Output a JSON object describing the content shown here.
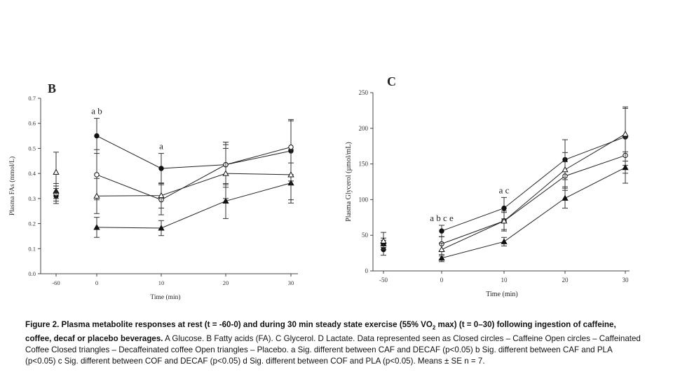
{
  "chart_data": [
    {
      "type": "line",
      "panel_label": "B",
      "title": "",
      "xlabel": "Time (min)",
      "ylabel": "Plasma FAs (mmol/L)",
      "x_ticks": [
        "-60",
        "0",
        "10",
        "20",
        "30"
      ],
      "y_ticks": [
        "0.0",
        "0.1",
        "0.2",
        "0.3",
        "0.4",
        "0.5",
        "0.6",
        "0.7"
      ],
      "ylim": [
        0,
        0.7
      ],
      "annotations": [
        {
          "x": "0",
          "text": "a b"
        },
        {
          "x": "10",
          "text": "a"
        }
      ],
      "series": [
        {
          "name": "Caffeine",
          "marker": "closed-circle",
          "values": [
            0.31,
            0.55,
            0.42,
            0.435,
            0.49
          ],
          "errors": [
            0.03,
            0.07,
            0.06,
            0.09,
            0.12
          ]
        },
        {
          "name": "Caffeinated Coffee",
          "marker": "open-circle",
          "values": [
            0.32,
            0.395,
            0.295,
            0.435,
            0.505
          ],
          "errors": [
            0.03,
            0.1,
            0.06,
            0.08,
            0.11
          ]
        },
        {
          "name": "Decaffeinated coffee",
          "marker": "closed-triangle",
          "values": [
            0.33,
            0.185,
            0.182,
            0.29,
            0.362
          ],
          "errors": [
            0.03,
            0.04,
            0.03,
            0.07,
            0.08
          ]
        },
        {
          "name": "Placebo",
          "marker": "open-triangle",
          "values": [
            0.405,
            0.31,
            0.312,
            0.4,
            0.395
          ],
          "errors": [
            0.08,
            0.07,
            0.05,
            0.1,
            0.1
          ]
        }
      ]
    },
    {
      "type": "line",
      "panel_label": "C",
      "title": "",
      "xlabel": "Time (min)",
      "ylabel": "Plasma Glycerol (µmol/mL)",
      "x_ticks": [
        "-50",
        "0",
        "10",
        "20",
        "30"
      ],
      "y_ticks": [
        "0",
        "50",
        "100",
        "150",
        "200",
        "250"
      ],
      "ylim": [
        0,
        250
      ],
      "annotations": [
        {
          "x": "0",
          "text": "a b c e"
        },
        {
          "x": "10",
          "text": "a c"
        }
      ],
      "series": [
        {
          "name": "Caffeine",
          "marker": "closed-circle",
          "values": [
            30,
            56,
            88,
            156,
            188
          ],
          "errors": [
            8,
            8,
            15,
            28,
            40
          ]
        },
        {
          "name": "Caffeinated Coffee",
          "marker": "open-circle",
          "values": [
            38,
            38,
            70,
            133,
            162
          ],
          "errors": [
            8,
            10,
            12,
            20,
            25
          ]
        },
        {
          "name": "Decaffeinated coffee",
          "marker": "closed-triangle",
          "values": [
            38,
            18,
            41,
            102,
            145
          ],
          "errors": [
            5,
            5,
            6,
            14,
            22
          ]
        },
        {
          "name": "Placebo",
          "marker": "open-triangle",
          "values": [
            42,
            30,
            70,
            142,
            192
          ],
          "errors": [
            12,
            9,
            14,
            24,
            38
          ]
        }
      ]
    }
  ],
  "caption": {
    "bold_part": "Figure 2. Plasma metabolite responses at rest (t = -60-0) and during 30 min steady state exercise (55% VO",
    "bold_sub": "2",
    "bold_tail": " max) (t = 0–30) following ingestion of caffeine, coffee, decaf or placebo beverages.",
    "body": " A Glucose. B Fatty acids (FA). C Glycerol. D Lactate. Data represented seen as Closed circles – Caffeine Open circles – Caffeinated Coffee Closed triangles – Decaffeinated coffee Open triangles – Placebo. a Sig. different between CAF and DECAF (p<0.05) b Sig. different between CAF and PLA (p<0.05) c Sig. different between COF and DECAF (p<0.05) d Sig. different between COF and PLA (p<0.05). Means ± SE n = 7."
  }
}
